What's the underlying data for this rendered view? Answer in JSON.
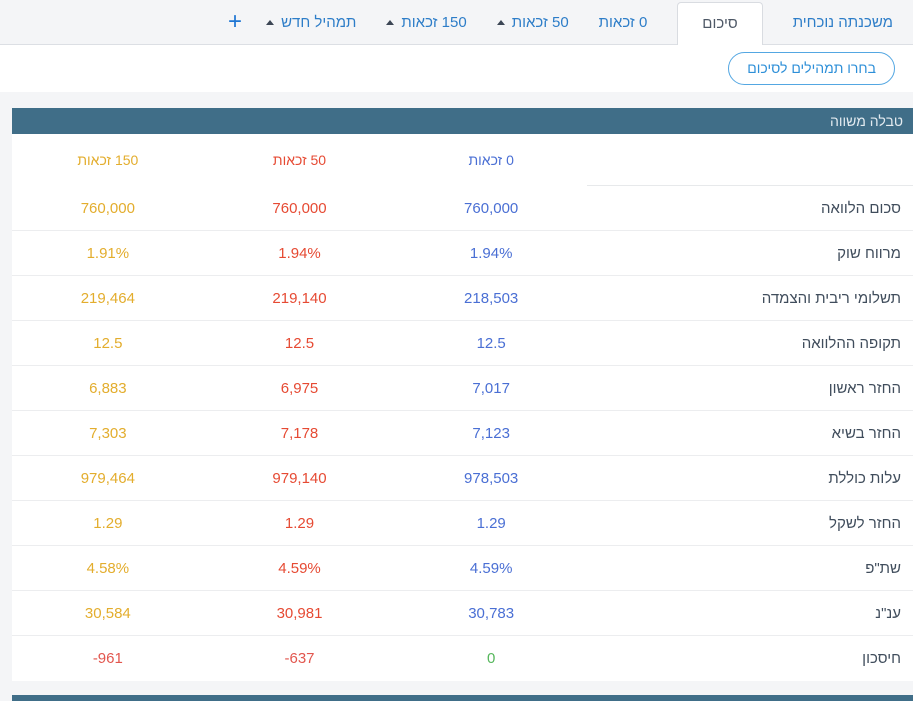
{
  "tabs": [
    {
      "label": "משכנתה נוכחית",
      "caret": false,
      "active": false
    },
    {
      "label": "סיכום",
      "caret": false,
      "active": true
    },
    {
      "label": "0 זכאות",
      "caret": false,
      "active": false
    },
    {
      "label": "50 זכאות",
      "caret": true,
      "active": false
    },
    {
      "label": "150 זכאות",
      "caret": true,
      "active": false
    },
    {
      "label": "תמהיל חדש",
      "caret": true,
      "active": false
    }
  ],
  "add_tab_label": "+",
  "toolbar": {
    "select_mixes_button": "בחרו תמהילים לסיכום"
  },
  "table": {
    "title": "טבלה משווה",
    "columns": [
      {
        "label": "0 זכאות",
        "color": "#4a6fd4"
      },
      {
        "label": "50 זכאות",
        "color": "#e64a33"
      },
      {
        "label": "150 זכאות",
        "color": "#e3ad2d"
      }
    ],
    "rows": [
      {
        "label": "סכום הלוואה",
        "values": [
          "760,000",
          "760,000",
          "760,000"
        ]
      },
      {
        "label": "מרווח שוק",
        "values": [
          "1.94%",
          "1.94%",
          "1.91%"
        ]
      },
      {
        "label": "תשלומי ריבית והצמדה",
        "values": [
          "218,503",
          "219,140",
          "219,464"
        ]
      },
      {
        "label": "תקופה ההלוואה",
        "values": [
          "12.5",
          "12.5",
          "12.5"
        ]
      },
      {
        "label": "החזר ראשון",
        "values": [
          "7,017",
          "6,975",
          "6,883"
        ]
      },
      {
        "label": "החזר בשיא",
        "values": [
          "7,123",
          "7,178",
          "7,303"
        ]
      },
      {
        "label": "עלות כוללת",
        "values": [
          "978,503",
          "979,140",
          "979,464"
        ]
      },
      {
        "label": "החזר לשקל",
        "values": [
          "1.29",
          "1.29",
          "1.29"
        ]
      },
      {
        "label": "שת\"פ",
        "values": [
          "4.59%",
          "4.59%",
          "4.58%"
        ]
      },
      {
        "label": "ענ\"נ",
        "values": [
          "30,783",
          "30,981",
          "30,584"
        ]
      },
      {
        "label": "חיסכון",
        "values": [
          "0",
          "-637",
          "-961"
        ],
        "value_colors": [
          "#56b75c",
          "#e2564e",
          "#e2564e"
        ]
      }
    ]
  },
  "colors": {
    "accent_blue": "#2d7dc8",
    "header_teal": "#406e88",
    "positive_green": "#56b75c",
    "negative_red": "#e2564e"
  }
}
